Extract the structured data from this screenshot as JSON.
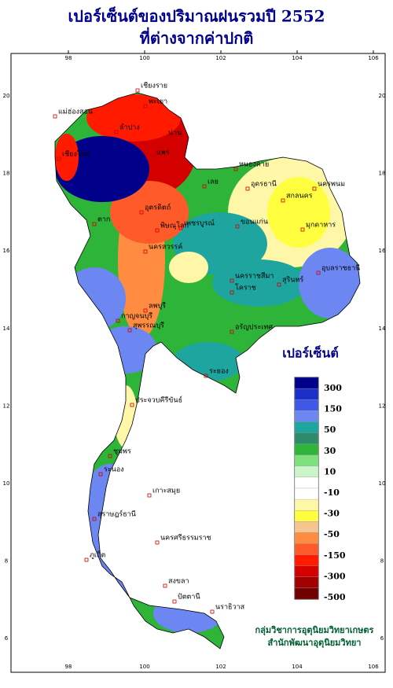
{
  "header": {
    "title_line1": "เปอร์เซ็นต์ของปริมาณฝนรวมปี 2552",
    "title_line2": "ที่ต่างจากค่าปกติ"
  },
  "map": {
    "lon_ticks": [
      98,
      100,
      102,
      104,
      106
    ],
    "lat_ticks": [
      20,
      18,
      16,
      14,
      12,
      10,
      8,
      6
    ],
    "cities": [
      "เชียงราย",
      "แม่ฮ่องสอน",
      "พะเยา",
      "น่าน",
      "ลำปาง",
      "แพร่",
      "เชียงใหม่",
      "หนองคาย",
      "อุดรธานี",
      "สกลนคร",
      "นครพนม",
      "เลย",
      "ขอนแก่น",
      "มุกดาหาร",
      "อุตรดิตถ์",
      "ตาก",
      "พิษณุโลก",
      "เพชรบูรณ์",
      "นครสวรรค์",
      "อุบลราชธานี",
      "สุรินทร์",
      "นครราชสีมา",
      "โคราช",
      "ลพบุรี",
      "สุพรรณบุรี",
      "กาญจนบุรี",
      "อรัญประเทศ",
      "ระยอง",
      "ประจวบคีรีขันธ์",
      "ชุมพร",
      "ระนอง",
      "เกาะสมุย",
      "สุราษฎร์ธานี",
      "ภูเก็ต",
      "นครศรีธรรมราช",
      "สงขลา",
      "ปัตตานี",
      "นราธิวาส"
    ]
  },
  "legend": {
    "title": "เปอร์เซ็นต์",
    "labels": [
      300,
      150,
      50,
      30,
      10,
      -10,
      -30,
      -50,
      -150,
      -300,
      -500
    ],
    "colors": [
      "#00008b",
      "#1c2fc8",
      "#3f58e6",
      "#6c86f2",
      "#1fa59f",
      "#2e8b6a",
      "#2fb43a",
      "#7fe07f",
      "#c9f5c9",
      "#ffffff",
      "#ffffff",
      "#fff7a8",
      "#ffff40",
      "#f7c48f",
      "#ff8c40",
      "#ff5a2a",
      "#ff1a00",
      "#d40000",
      "#a00000",
      "#700000"
    ]
  },
  "footer": {
    "line1": "กลุ่มวิชาการอุตุนิยมวิทยาเกษตร",
    "line2": "สำนักพัฒนาอุตุนิยมวิทยา"
  }
}
